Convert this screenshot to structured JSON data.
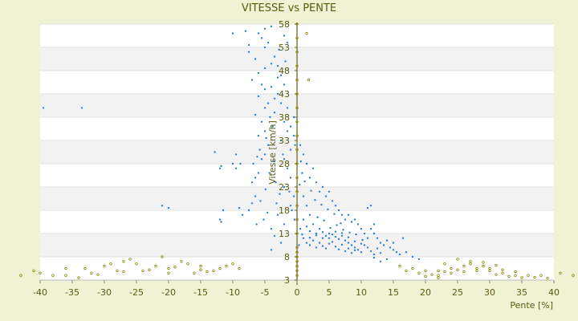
{
  "chart_data": {
    "type": "scatter",
    "title": "VITESSE vs PENTE",
    "xlabel": "Pente [%]",
    "ylabel": "Vitesse [km/h]",
    "xlim": [
      -40,
      40
    ],
    "ylim": [
      3,
      58
    ],
    "x_ticks": [
      -40,
      -35,
      -30,
      -25,
      -20,
      -15,
      -10,
      -5,
      0,
      5,
      10,
      15,
      20,
      25,
      30,
      35,
      40
    ],
    "y_ticks": [
      3,
      8,
      13,
      18,
      23,
      28,
      33,
      38,
      43,
      48,
      53,
      58
    ],
    "grid": true,
    "background_color": "#f0f2d4",
    "plot_band_colors": [
      "#ffffff",
      "#f2f2f2"
    ],
    "series": [
      {
        "color": "#2e7fd6",
        "marker": "dot",
        "points": [
          [
            -39.5,
            40
          ],
          [
            -33.5,
            40
          ],
          [
            -12.8,
            30.5
          ],
          [
            -12,
            27
          ],
          [
            -11.8,
            27.5
          ],
          [
            -10,
            28
          ],
          [
            -9.5,
            30
          ],
          [
            -9.5,
            27
          ],
          [
            -8.8,
            28
          ],
          [
            -9,
            18.5
          ],
          [
            -11.5,
            18
          ],
          [
            -12,
            16
          ],
          [
            -11.8,
            15.5
          ],
          [
            -8.5,
            17
          ],
          [
            -21,
            19
          ],
          [
            -20,
            18.5
          ],
          [
            -7.5,
            18
          ],
          [
            -7,
            19.5
          ],
          [
            -6.5,
            21
          ],
          [
            -7,
            24
          ],
          [
            -6.8,
            28
          ],
          [
            -6.5,
            25
          ],
          [
            -6,
            26
          ],
          [
            -5.5,
            29
          ],
          [
            -5,
            30
          ],
          [
            -4.5,
            32
          ],
          [
            -6,
            34
          ],
          [
            -5,
            35
          ],
          [
            -5.5,
            37
          ],
          [
            -6.5,
            38.5
          ],
          [
            -5,
            40
          ],
          [
            -4.5,
            41
          ],
          [
            -6,
            42.5
          ],
          [
            -5,
            44
          ],
          [
            -5.5,
            45
          ],
          [
            -7,
            46
          ],
          [
            -6,
            47.5
          ],
          [
            -5,
            48.5
          ],
          [
            -4,
            49.5
          ],
          [
            -6.5,
            50.5
          ],
          [
            -7.5,
            52
          ],
          [
            -5,
            53
          ],
          [
            -4.5,
            54
          ],
          [
            -5.5,
            55
          ],
          [
            -6,
            56
          ],
          [
            -5,
            57
          ],
          [
            -4,
            57.5
          ],
          [
            -8,
            56.5
          ],
          [
            -10,
            56
          ],
          [
            -7.5,
            53.5
          ],
          [
            -3.5,
            51
          ],
          [
            -3,
            49
          ],
          [
            -2.5,
            47
          ],
          [
            -2,
            45
          ],
          [
            -3,
            43
          ],
          [
            -2.5,
            41
          ],
          [
            -3.5,
            39
          ],
          [
            -2,
            37
          ],
          [
            -1.5,
            35
          ],
          [
            -2.5,
            33
          ],
          [
            -1,
            31
          ],
          [
            -2,
            29
          ],
          [
            -1.5,
            27
          ],
          [
            -1,
            25
          ],
          [
            -2,
            23
          ],
          [
            -0.5,
            21
          ],
          [
            -1,
            19
          ],
          [
            -3,
            17
          ],
          [
            -2,
            15
          ],
          [
            -4,
            14
          ],
          [
            -3.5,
            12.5
          ],
          [
            -2.5,
            11
          ],
          [
            -4,
            9.5
          ],
          [
            -3,
            46.5
          ],
          [
            -4,
            44.5
          ],
          [
            -3.5,
            42
          ],
          [
            -1.5,
            40
          ],
          [
            -0.5,
            38
          ],
          [
            -1,
            36
          ],
          [
            -0.5,
            34
          ],
          [
            -0.3,
            32
          ],
          [
            -1.8,
            50
          ],
          [
            -2.8,
            52.5
          ],
          [
            -1.5,
            54
          ],
          [
            -2,
            55.5
          ],
          [
            -4.2,
            38
          ],
          [
            -3.8,
            36
          ],
          [
            -4.8,
            33.5
          ],
          [
            -5.8,
            31
          ],
          [
            -6.2,
            29.5
          ],
          [
            -4.3,
            26
          ],
          [
            -3.3,
            24
          ],
          [
            -2.7,
            21.5
          ],
          [
            -3.2,
            19.5
          ],
          [
            -4.6,
            17.5
          ],
          [
            -5.2,
            16
          ],
          [
            -6.3,
            15
          ],
          [
            -4.9,
            22.5
          ],
          [
            -5.7,
            20
          ],
          [
            -3.6,
            28.5
          ],
          [
            -2.2,
            30
          ],
          [
            -1.2,
            22
          ],
          [
            -0.8,
            18
          ],
          [
            -0.4,
            16
          ],
          [
            0.5,
            32
          ],
          [
            1,
            30
          ],
          [
            1.5,
            28
          ],
          [
            0.8,
            26
          ],
          [
            2,
            25
          ],
          [
            2.5,
            27
          ],
          [
            3,
            24
          ],
          [
            3.5,
            22
          ],
          [
            4,
            23
          ],
          [
            4.5,
            21
          ],
          [
            5,
            22
          ],
          [
            5.5,
            20
          ],
          [
            6,
            19
          ],
          [
            6.5,
            18
          ],
          [
            7,
            17
          ],
          [
            7.5,
            16
          ],
          [
            8,
            17
          ],
          [
            8.5,
            15.5
          ],
          [
            9,
            16
          ],
          [
            9.5,
            15
          ],
          [
            10,
            14
          ],
          [
            10.5,
            13
          ],
          [
            11,
            12
          ],
          [
            11.5,
            14
          ],
          [
            12,
            13
          ],
          [
            12.5,
            12
          ],
          [
            13,
            11
          ],
          [
            13.5,
            10.5
          ],
          [
            14,
            11.5
          ],
          [
            14.5,
            10
          ],
          [
            15,
            9.5
          ],
          [
            15.5,
            9
          ],
          [
            16,
            8.5
          ],
          [
            17,
            9
          ],
          [
            18,
            8
          ],
          [
            19,
            7.5
          ],
          [
            11,
            18.5
          ],
          [
            11.5,
            19
          ],
          [
            1,
            21
          ],
          [
            1.5,
            19
          ],
          [
            2,
            17
          ],
          [
            2.5,
            15
          ],
          [
            3,
            13
          ],
          [
            3.5,
            14
          ],
          [
            4,
            12
          ],
          [
            4.5,
            12.5
          ],
          [
            5,
            12
          ],
          [
            5.5,
            12.8
          ],
          [
            6,
            12.3
          ],
          [
            6.5,
            11.8
          ],
          [
            7,
            12.5
          ],
          [
            7.5,
            11.5
          ],
          [
            8,
            11
          ],
          [
            8.5,
            10.5
          ],
          [
            9,
            10
          ],
          [
            9.5,
            9.5
          ],
          [
            10,
            9
          ],
          [
            10.5,
            10.5
          ],
          [
            11,
            10
          ],
          [
            11.5,
            9.2
          ],
          [
            12,
            8.5
          ],
          [
            12.5,
            9.8
          ],
          [
            13,
            8.8
          ],
          [
            1,
            12
          ],
          [
            1.5,
            11
          ],
          [
            2,
            10.5
          ],
          [
            2.5,
            11.5
          ],
          [
            3,
            10
          ],
          [
            3.5,
            11
          ],
          [
            4,
            10.3
          ],
          [
            4.5,
            9.8
          ],
          [
            5,
            10.8
          ],
          [
            5.5,
            11.2
          ],
          [
            6,
            10.2
          ],
          [
            6.5,
            9.6
          ],
          [
            7,
            10.6
          ],
          [
            7.5,
            9.2
          ],
          [
            8,
            9.8
          ],
          [
            8.5,
            8.8
          ],
          [
            9,
            9.4
          ],
          [
            0.5,
            14
          ],
          [
            1,
            16
          ],
          [
            1.5,
            14.5
          ],
          [
            2,
            13.5
          ],
          [
            0.3,
            10.5
          ],
          [
            0.8,
            12.8
          ],
          [
            3.2,
            16.5
          ],
          [
            4.2,
            15.8
          ],
          [
            5.2,
            14.2
          ],
          [
            6.2,
            14.8
          ],
          [
            7.2,
            13.8
          ],
          [
            8.2,
            13.2
          ],
          [
            9.2,
            12.8
          ],
          [
            10.2,
            11.6
          ],
          [
            3.8,
            19.2
          ],
          [
            4.8,
            18.2
          ],
          [
            5.8,
            17.2
          ],
          [
            6.8,
            15.2
          ],
          [
            2.2,
            22.2
          ],
          [
            2.8,
            20.2
          ],
          [
            1.2,
            24.2
          ],
          [
            0.6,
            28.5
          ],
          [
            0.4,
            23.5
          ],
          [
            16.5,
            12
          ],
          [
            15,
            11
          ],
          [
            12,
            15
          ],
          [
            5,
            13
          ],
          [
            6,
            13.4
          ],
          [
            7,
            13.1
          ],
          [
            8,
            12.2
          ],
          [
            4,
            13.3
          ],
          [
            3,
            12.6
          ],
          [
            2,
            12.1
          ],
          [
            9,
            11.3
          ],
          [
            10,
            10.8
          ],
          [
            14,
            7.5
          ],
          [
            13,
            7
          ],
          [
            12,
            7.8
          ]
        ]
      },
      {
        "color": "#8a8a10",
        "marker": "hollow",
        "points": [
          [
            -43,
            4
          ],
          [
            -41,
            5
          ],
          [
            -40,
            4.5
          ],
          [
            -38,
            4
          ],
          [
            -36,
            5.5
          ],
          [
            -33,
            5.5
          ],
          [
            -30,
            6
          ],
          [
            -27,
            7
          ],
          [
            -25,
            6.5
          ],
          [
            -22,
            6
          ],
          [
            -20,
            5.5
          ],
          [
            -18,
            7
          ],
          [
            -15,
            6
          ],
          [
            -12,
            5.5
          ],
          [
            -10,
            6.5
          ],
          [
            -36,
            4
          ],
          [
            -32,
            4.5
          ],
          [
            -28,
            5
          ],
          [
            -24,
            5
          ],
          [
            -20,
            4.5
          ],
          [
            -16,
            4.5
          ],
          [
            -13,
            5
          ],
          [
            -9,
            5.5
          ],
          [
            -34,
            3.5
          ],
          [
            -31,
            4.2
          ],
          [
            -27,
            4.8
          ],
          [
            -23,
            5.2
          ],
          [
            -19,
            5.8
          ],
          [
            -15,
            5.2
          ],
          [
            -11,
            6
          ],
          [
            -26,
            7.5
          ],
          [
            -29,
            6.5
          ],
          [
            -21,
            8
          ],
          [
            -17,
            6.5
          ],
          [
            -14,
            4.8
          ],
          [
            0,
            58
          ],
          [
            0,
            55
          ],
          [
            0,
            52
          ],
          [
            0,
            49
          ],
          [
            0,
            46
          ],
          [
            0,
            43
          ],
          [
            0,
            40
          ],
          [
            0,
            37
          ],
          [
            0,
            34
          ],
          [
            0,
            31
          ],
          [
            0,
            28
          ],
          [
            0,
            25
          ],
          [
            0,
            22
          ],
          [
            0,
            19
          ],
          [
            0,
            16
          ],
          [
            0,
            13
          ],
          [
            0,
            10
          ],
          [
            0,
            9
          ],
          [
            0,
            8
          ],
          [
            0,
            7
          ],
          [
            0,
            6
          ],
          [
            0,
            5
          ],
          [
            0,
            4
          ],
          [
            1.5,
            56
          ],
          [
            1.8,
            46
          ],
          [
            16,
            6
          ],
          [
            18,
            5.5
          ],
          [
            20,
            5
          ],
          [
            22,
            5
          ],
          [
            24,
            5.5
          ],
          [
            26,
            6
          ],
          [
            28,
            5.5
          ],
          [
            30,
            5
          ],
          [
            32,
            4.5
          ],
          [
            34,
            4
          ],
          [
            36,
            4
          ],
          [
            38,
            4
          ],
          [
            22,
            4
          ],
          [
            24,
            4.5
          ],
          [
            26,
            4.8
          ],
          [
            28,
            5
          ],
          [
            30,
            5.5
          ],
          [
            32,
            5.2
          ],
          [
            34,
            4.8
          ],
          [
            17,
            5
          ],
          [
            19,
            4.5
          ],
          [
            21,
            4.2
          ],
          [
            23,
            4.8
          ],
          [
            25,
            5.2
          ],
          [
            27,
            6.5
          ],
          [
            29,
            6
          ],
          [
            31,
            4.2
          ],
          [
            33,
            3.8
          ],
          [
            35,
            3.5
          ],
          [
            37,
            3.6
          ],
          [
            39,
            3.4
          ],
          [
            41,
            4.5
          ],
          [
            43,
            4
          ],
          [
            25,
            7.5
          ],
          [
            27,
            7
          ],
          [
            29,
            6.8
          ],
          [
            31,
            6.2
          ],
          [
            23,
            6.5
          ],
          [
            20,
            3.8
          ],
          [
            22,
            3.5
          ]
        ]
      }
    ]
  }
}
